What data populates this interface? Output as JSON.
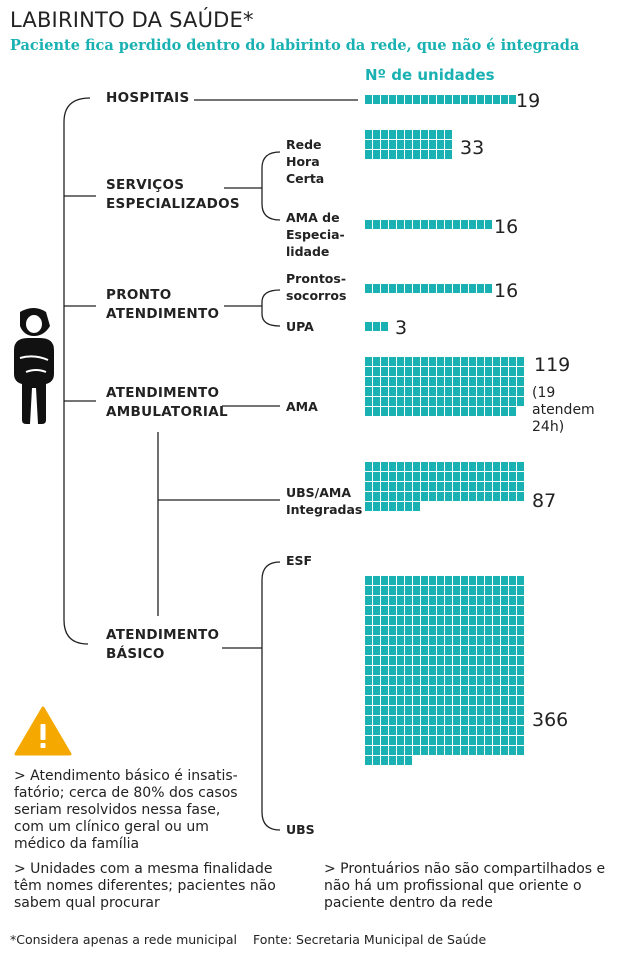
{
  "title": "LABIRINTO DA SAÚDE*",
  "subtitle": "Paciente fica perdido dentro do labirinto da rede, que não é integrada",
  "column_header": "Nº de unidades",
  "categories": {
    "hospitais": "HOSPITAIS",
    "servicos": [
      "SERVIÇOS",
      "ESPECIALIZADOS"
    ],
    "pronto": [
      "PRONTO",
      "ATENDIMENTO"
    ],
    "ambulatorial": [
      "ATENDIMENTO",
      "AMBULATORIAL"
    ],
    "basico": [
      "ATENDIMENTO",
      "BÁSICO"
    ]
  },
  "units": [
    {
      "key": "hospitais",
      "label": [],
      "count": 19,
      "count_text": "19"
    },
    {
      "key": "rede_hora_certa",
      "label": [
        "Rede",
        "Hora",
        "Certa"
      ],
      "count": 33,
      "count_text": "33"
    },
    {
      "key": "ama_especialidade",
      "label": [
        "AMA de",
        "Especia-",
        "lidade"
      ],
      "count": 16,
      "count_text": "16"
    },
    {
      "key": "prontos_socorros",
      "label": [
        "Prontos-",
        "socorros"
      ],
      "count": 16,
      "count_text": "16"
    },
    {
      "key": "upa",
      "label": [
        "UPA"
      ],
      "count": 3,
      "count_text": "3"
    },
    {
      "key": "ama",
      "label": [
        "AMA"
      ],
      "count": 119,
      "count_text": "119",
      "note": [
        "(19 atendem",
        "24h)"
      ]
    },
    {
      "key": "ubs_ama",
      "label": [
        "UBS/AMA",
        "Integradas"
      ],
      "count": 87,
      "count_text": "87"
    },
    {
      "key": "esf_ubs",
      "label": [
        "ESF",
        "UBS"
      ],
      "count": 366,
      "count_text": "366"
    }
  ],
  "notes": {
    "basico": [
      "> Atendimento básico é insatis-",
      "fatório; cerca de 80% dos casos",
      "seriam resolvidos nessa fase,",
      "com um clínico geral ou um",
      "médico da família"
    ],
    "nomes": [
      "> Unidades com a mesma finalidade",
      "têm nomes diferentes; pacientes não",
      "sabem qual procurar"
    ],
    "prontuarios": [
      "> Prontuários não são compartilhados e",
      "não há um profissional que oriente o",
      "paciente dentro da rede"
    ]
  },
  "footer": {
    "note": "*Considera apenas a rede municipal",
    "source": "Fonte: Secretaria Municipal de Saúde"
  },
  "colors": {
    "accent": "#1ab1b2",
    "warning": "#f5a800",
    "text": "#222222"
  },
  "icons": [
    "warning-icon",
    "person-icon"
  ]
}
